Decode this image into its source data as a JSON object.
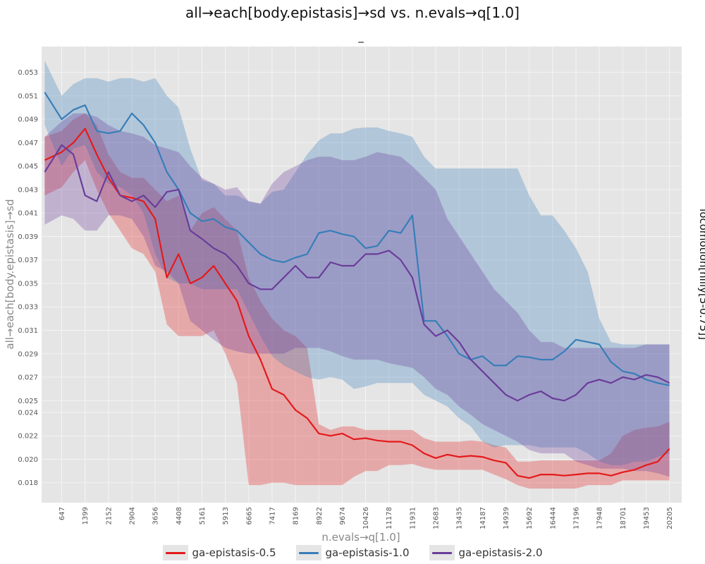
{
  "chart_data": {
    "type": "line",
    "title": "all→each[body.epistasis]→sd vs. n.evals→q[1.0]",
    "subtitle": "_",
    "xlabel": "n.evals→q[1.0]",
    "ylabel": "all→each[body.epistasis]→sd",
    "facet_label": "locomotion[hilly[5-0.75]]",
    "xlim": [
      0,
      20600
    ],
    "ylim": [
      0.0163,
      0.0552
    ],
    "x_ticks": [
      "647",
      "1399",
      "2152",
      "2904",
      "3656",
      "4408",
      "5161",
      "5913",
      "6665",
      "7417",
      "8169",
      "8922",
      "9674",
      "10426",
      "11178",
      "11931",
      "12683",
      "13435",
      "14187",
      "14939",
      "15692",
      "16444",
      "17196",
      "17948",
      "18701",
      "19453",
      "20205"
    ],
    "y_ticks": [
      "0.053",
      "0.051",
      "0.049",
      "0.047",
      "0.045",
      "0.043",
      "0.041",
      "0.039",
      "0.037",
      "0.035",
      "0.033",
      "0.031",
      "0.029",
      "0.027",
      "0.025",
      "0.024",
      "0.022",
      "0.020",
      "0.018"
    ],
    "grid": true,
    "legend_position": "bottom",
    "series": [
      {
        "name": "ga-epistasis-0.5",
        "color": "#e41a1c",
        "x": [
          100,
          647,
          1023,
          1399,
          1776,
          2152,
          2528,
          2904,
          3280,
          3656,
          4032,
          4408,
          4785,
          5161,
          5537,
          5913,
          6289,
          6665,
          7041,
          7417,
          7793,
          8169,
          8546,
          8922,
          9298,
          9674,
          10050,
          10426,
          10802,
          11178,
          11555,
          11931,
          12307,
          12683,
          13059,
          13435,
          13811,
          14187,
          14563,
          14939,
          15316,
          15692,
          16068,
          16444,
          16820,
          17196,
          17572,
          17948,
          18325,
          18701,
          19077,
          19453,
          19829,
          20205
        ],
        "y": [
          0.0455,
          0.0462,
          0.047,
          0.0482,
          0.046,
          0.044,
          0.0425,
          0.0423,
          0.042,
          0.0405,
          0.0355,
          0.0375,
          0.035,
          0.0355,
          0.0365,
          0.035,
          0.0335,
          0.0305,
          0.0285,
          0.026,
          0.0255,
          0.0242,
          0.0235,
          0.0222,
          0.022,
          0.0222,
          0.0217,
          0.0218,
          0.0216,
          0.0215,
          0.0215,
          0.0212,
          0.0205,
          0.0201,
          0.0204,
          0.0202,
          0.0203,
          0.0202,
          0.0199,
          0.0197,
          0.0186,
          0.0184,
          0.0187,
          0.0187,
          0.0186,
          0.0187,
          0.0188,
          0.0188,
          0.0186,
          0.0189,
          0.0191,
          0.0195,
          0.0198,
          0.0209
        ],
        "lower": [
          0.0425,
          0.0432,
          0.0445,
          0.0455,
          0.043,
          0.041,
          0.0395,
          0.038,
          0.0375,
          0.036,
          0.0315,
          0.0305,
          0.0305,
          0.0305,
          0.031,
          0.029,
          0.0265,
          0.0178,
          0.0178,
          0.018,
          0.018,
          0.0178,
          0.0178,
          0.0178,
          0.0178,
          0.0178,
          0.0185,
          0.019,
          0.019,
          0.0195,
          0.0195,
          0.0196,
          0.0193,
          0.0191,
          0.0191,
          0.0191,
          0.0191,
          0.0191,
          0.0187,
          0.0183,
          0.0178,
          0.0175,
          0.0175,
          0.0175,
          0.0175,
          0.0175,
          0.0178,
          0.0178,
          0.0178,
          0.0182,
          0.0182,
          0.0182,
          0.0182,
          0.0182
        ],
        "upper": [
          0.0475,
          0.048,
          0.049,
          0.0495,
          0.0485,
          0.046,
          0.0445,
          0.044,
          0.044,
          0.043,
          0.042,
          0.0425,
          0.0395,
          0.041,
          0.0415,
          0.0405,
          0.0395,
          0.0355,
          0.0335,
          0.032,
          0.031,
          0.0305,
          0.0295,
          0.023,
          0.0225,
          0.0228,
          0.0228,
          0.0225,
          0.0225,
          0.0225,
          0.0225,
          0.0225,
          0.0218,
          0.0215,
          0.0215,
          0.0215,
          0.0216,
          0.0215,
          0.0212,
          0.021,
          0.0198,
          0.0198,
          0.0199,
          0.0199,
          0.0199,
          0.0199,
          0.0199,
          0.0199,
          0.0205,
          0.022,
          0.0225,
          0.0227,
          0.0228,
          0.0232
        ]
      },
      {
        "name": "ga-epistasis-1.0",
        "color": "#377eb8",
        "x": [
          100,
          647,
          1023,
          1399,
          1776,
          2152,
          2528,
          2904,
          3280,
          3656,
          4032,
          4408,
          4785,
          5161,
          5537,
          5913,
          6289,
          6665,
          7041,
          7417,
          7793,
          8169,
          8546,
          8922,
          9298,
          9674,
          10050,
          10426,
          10802,
          11178,
          11555,
          11931,
          12307,
          12683,
          13059,
          13435,
          13811,
          14187,
          14563,
          14939,
          15316,
          15692,
          16068,
          16444,
          16820,
          17196,
          17572,
          17948,
          18325,
          18701,
          19077,
          19453,
          19829,
          20205
        ],
        "y": [
          0.0513,
          0.049,
          0.0498,
          0.0502,
          0.048,
          0.0478,
          0.048,
          0.0495,
          0.0485,
          0.047,
          0.0445,
          0.043,
          0.041,
          0.0403,
          0.0405,
          0.0398,
          0.0395,
          0.0385,
          0.0375,
          0.037,
          0.0368,
          0.0372,
          0.0375,
          0.0393,
          0.0395,
          0.0392,
          0.039,
          0.038,
          0.0382,
          0.0395,
          0.0393,
          0.0408,
          0.0318,
          0.0318,
          0.0305,
          0.029,
          0.0285,
          0.0288,
          0.028,
          0.028,
          0.0288,
          0.0287,
          0.0285,
          0.0285,
          0.0292,
          0.0302,
          0.03,
          0.0298,
          0.0283,
          0.0275,
          0.0273,
          0.0268,
          0.0265,
          0.0263
        ],
        "lower": [
          0.0485,
          0.045,
          0.0465,
          0.0468,
          0.0445,
          0.0435,
          0.0432,
          0.0425,
          0.041,
          0.0375,
          0.0355,
          0.035,
          0.035,
          0.0345,
          0.0345,
          0.0345,
          0.0345,
          0.0325,
          0.0305,
          0.0288,
          0.028,
          0.0275,
          0.027,
          0.0268,
          0.027,
          0.0268,
          0.026,
          0.0262,
          0.0265,
          0.0265,
          0.0265,
          0.0265,
          0.0255,
          0.025,
          0.0245,
          0.0235,
          0.0228,
          0.0215,
          0.021,
          0.0212,
          0.0212,
          0.0212,
          0.021,
          0.021,
          0.021,
          0.021,
          0.0205,
          0.0198,
          0.0195,
          0.0195,
          0.0198,
          0.0198,
          0.0202,
          0.0205
        ],
        "upper": [
          0.054,
          0.051,
          0.052,
          0.0525,
          0.0525,
          0.0522,
          0.0525,
          0.0525,
          0.0522,
          0.0525,
          0.051,
          0.05,
          0.0465,
          0.0438,
          0.0435,
          0.0425,
          0.0425,
          0.042,
          0.0418,
          0.0428,
          0.043,
          0.0445,
          0.046,
          0.0472,
          0.0478,
          0.0478,
          0.0482,
          0.0483,
          0.0483,
          0.048,
          0.0478,
          0.0475,
          0.0458,
          0.0448,
          0.0448,
          0.0448,
          0.0448,
          0.0448,
          0.0448,
          0.0448,
          0.0448,
          0.0425,
          0.0408,
          0.0408,
          0.0395,
          0.038,
          0.036,
          0.032,
          0.03,
          0.0298,
          0.0298,
          0.0298,
          0.0298,
          0.0298
        ]
      },
      {
        "name": "ga-epistasis-2.0",
        "color": "#6a3d9a",
        "x": [
          100,
          647,
          1023,
          1399,
          1776,
          2152,
          2528,
          2904,
          3280,
          3656,
          4032,
          4408,
          4785,
          5161,
          5537,
          5913,
          6289,
          6665,
          7041,
          7417,
          7793,
          8169,
          8546,
          8922,
          9298,
          9674,
          10050,
          10426,
          10802,
          11178,
          11555,
          11931,
          12307,
          12683,
          13059,
          13435,
          13811,
          14187,
          14563,
          14939,
          15316,
          15692,
          16068,
          16444,
          16820,
          17196,
          17572,
          17948,
          18325,
          18701,
          19077,
          19453,
          19829,
          20205
        ],
        "y": [
          0.0445,
          0.0468,
          0.046,
          0.0425,
          0.042,
          0.0445,
          0.0425,
          0.042,
          0.0425,
          0.0415,
          0.0428,
          0.043,
          0.0395,
          0.0388,
          0.038,
          0.0375,
          0.0365,
          0.035,
          0.0345,
          0.0345,
          0.0355,
          0.0365,
          0.0355,
          0.0355,
          0.0368,
          0.0365,
          0.0365,
          0.0375,
          0.0375,
          0.0378,
          0.037,
          0.0355,
          0.0315,
          0.0305,
          0.031,
          0.03,
          0.0285,
          0.0275,
          0.0265,
          0.0255,
          0.025,
          0.0255,
          0.0258,
          0.0252,
          0.025,
          0.0255,
          0.0265,
          0.0268,
          0.0265,
          0.027,
          0.0268,
          0.0272,
          0.027,
          0.0265
        ],
        "lower": [
          0.04,
          0.0408,
          0.0405,
          0.0395,
          0.0395,
          0.0408,
          0.0408,
          0.0405,
          0.039,
          0.0365,
          0.036,
          0.035,
          0.0318,
          0.031,
          0.0302,
          0.0295,
          0.0292,
          0.029,
          0.029,
          0.029,
          0.029,
          0.0295,
          0.0295,
          0.0295,
          0.0292,
          0.0288,
          0.0285,
          0.0285,
          0.0285,
          0.0282,
          0.028,
          0.0278,
          0.027,
          0.026,
          0.0255,
          0.0245,
          0.0238,
          0.023,
          0.0225,
          0.022,
          0.0215,
          0.0208,
          0.0205,
          0.0205,
          0.0205,
          0.0198,
          0.0195,
          0.0192,
          0.0192,
          0.0192,
          0.019,
          0.019,
          0.0188,
          0.0185
        ],
        "upper": [
          0.0475,
          0.0488,
          0.0495,
          0.0495,
          0.0492,
          0.0485,
          0.048,
          0.0478,
          0.0475,
          0.0468,
          0.0465,
          0.0462,
          0.045,
          0.044,
          0.0435,
          0.043,
          0.0432,
          0.042,
          0.0418,
          0.0435,
          0.0445,
          0.045,
          0.0455,
          0.0458,
          0.0458,
          0.0455,
          0.0455,
          0.0458,
          0.0462,
          0.046,
          0.0458,
          0.045,
          0.044,
          0.043,
          0.0405,
          0.039,
          0.0375,
          0.036,
          0.0345,
          0.0335,
          0.0325,
          0.031,
          0.03,
          0.03,
          0.0295,
          0.0295,
          0.0295,
          0.0295,
          0.0295,
          0.0295,
          0.0295,
          0.0298,
          0.0298,
          0.0298
        ]
      }
    ]
  }
}
